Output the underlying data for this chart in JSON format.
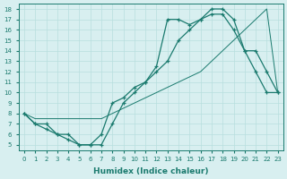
{
  "xlabel": "Humidex (Indice chaleur)",
  "bg_color": "#d8eff0",
  "line_color": "#1a7a6e",
  "grid_color": "#b8dede",
  "xlim": [
    -0.5,
    23.5
  ],
  "ylim": [
    4.5,
    18.5
  ],
  "xticks": [
    0,
    1,
    2,
    3,
    4,
    5,
    6,
    7,
    8,
    9,
    10,
    11,
    12,
    13,
    14,
    15,
    16,
    17,
    18,
    19,
    20,
    21,
    22,
    23
  ],
  "yticks": [
    5,
    6,
    7,
    8,
    9,
    10,
    11,
    12,
    13,
    14,
    15,
    16,
    17,
    18
  ],
  "line1_x": [
    0,
    1,
    2,
    3,
    4,
    5,
    6,
    7,
    8,
    9,
    10,
    11,
    12,
    13,
    14,
    15,
    16,
    17,
    18,
    19,
    20,
    21,
    22,
    23
  ],
  "line1_y": [
    8,
    7,
    7,
    6,
    6,
    5,
    5,
    5,
    7,
    9,
    10,
    11,
    12,
    13,
    15,
    16,
    17,
    18,
    18,
    17,
    14,
    12,
    10,
    10
  ],
  "line2_x": [
    0,
    1,
    2,
    3,
    4,
    5,
    6,
    7,
    8,
    9,
    10,
    11,
    12,
    13,
    14,
    15,
    16,
    17,
    18,
    19,
    20,
    21,
    22,
    23
  ],
  "line2_y": [
    8,
    7,
    6.5,
    6,
    5.5,
    5,
    5,
    6,
    9,
    9.5,
    10.5,
    11,
    12.5,
    17,
    17,
    16.5,
    17,
    17.5,
    17.5,
    16,
    14,
    14,
    12,
    10
  ],
  "line3_x": [
    0,
    1,
    2,
    3,
    4,
    5,
    6,
    7,
    8,
    9,
    10,
    11,
    12,
    13,
    14,
    15,
    16,
    17,
    18,
    19,
    20,
    21,
    22,
    23
  ],
  "line3_y": [
    8,
    7.5,
    7.5,
    7.5,
    7.5,
    7.5,
    7.5,
    7.5,
    8,
    8.5,
    9,
    9.5,
    10,
    10.5,
    11,
    11.5,
    12,
    13,
    14,
    15,
    16,
    17,
    18,
    10
  ]
}
